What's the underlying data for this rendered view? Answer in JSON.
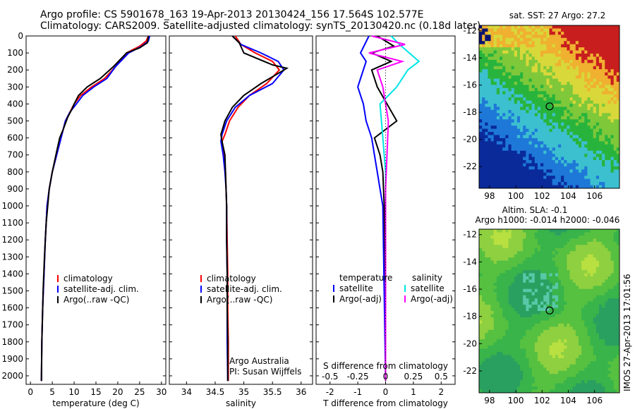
{
  "header": {
    "line1": "Argo profile: CS 5901678_163 19-Apr-2013 20130424_156 17.564S 102.577E",
    "line2": "Climatology: CARS2009. Satellite-adjusted climatology: synTS_20130420.nc (0.18d later)"
  },
  "side_stamp": "IMOS 27-Apr-2013 17:01:56",
  "colors": {
    "climatology": "#ff0000",
    "satellite": "#0000ff",
    "argo": "#000000",
    "sal_satellite": "#00e5e5",
    "sal_argo": "#ff00ff"
  },
  "chart_data": [
    {
      "id": "temperature",
      "type": "line",
      "xlabel": "temperature (deg C)",
      "ylim": [
        2050,
        0
      ],
      "xlim": [
        -1,
        31
      ],
      "xticks": [
        "0",
        "5",
        "10",
        "15",
        "20",
        "25",
        "30"
      ],
      "yticks": [
        "0",
        "100",
        "200",
        "300",
        "400",
        "500",
        "600",
        "700",
        "800",
        "900",
        "1000",
        "1100",
        "1200",
        "1300",
        "1400",
        "1500",
        "1600",
        "1700",
        "1800",
        "1900",
        "2000"
      ],
      "legend": [
        "climatology",
        "satellite-adj. clim.",
        "Argo(..raw -QC)"
      ],
      "series": [
        {
          "name": "climatology",
          "color": "red",
          "x": [
            27,
            26.5,
            25,
            22,
            19.5,
            17,
            14,
            11.5,
            10,
            9,
            8,
            7,
            6,
            5,
            4.3,
            3.8,
            3.4,
            3.1,
            2.8,
            2.6,
            2.5
          ],
          "y": [
            0,
            30,
            60,
            100,
            180,
            250,
            300,
            350,
            400,
            450,
            500,
            600,
            700,
            800,
            900,
            1000,
            1200,
            1400,
            1600,
            1800,
            2030
          ]
        },
        {
          "name": "satellite-adj. clim.",
          "color": "blue",
          "x": [
            27.3,
            27,
            25.5,
            22.5,
            19.5,
            17.5,
            14.5,
            12,
            10.5,
            9,
            8,
            7,
            6,
            5,
            4.3,
            3.8,
            3.4,
            3.1,
            2.8,
            2.6,
            2.5
          ],
          "y": [
            0,
            30,
            60,
            100,
            180,
            250,
            300,
            350,
            400,
            450,
            500,
            600,
            700,
            800,
            900,
            1000,
            1200,
            1400,
            1600,
            1800,
            2030
          ]
        },
        {
          "name": "Argo(..raw -QC)",
          "color": "black",
          "x": [
            27,
            26.8,
            25,
            22,
            19,
            16,
            13,
            11,
            10,
            9.5,
            8.5,
            7.5,
            6.7,
            6,
            5,
            4.3,
            3.6,
            3.2,
            2.9,
            2.6,
            2.5
          ],
          "y": [
            0,
            40,
            70,
            100,
            180,
            250,
            300,
            350,
            400,
            430,
            480,
            550,
            600,
            680,
            800,
            900,
            1100,
            1300,
            1500,
            1800,
            2030
          ]
        }
      ]
    },
    {
      "id": "salinity",
      "type": "line",
      "xlabel": "salinity",
      "ylim": [
        2050,
        0
      ],
      "xlim": [
        33.7,
        36.2
      ],
      "xticks": [
        "34",
        "34.5",
        "35",
        "35.5",
        "36"
      ],
      "legend": [
        "climatology",
        "satellite-adj. clim.",
        "Argo(..raw -QC)"
      ],
      "annotations": [
        "Argo Australia",
        "PI: Susan Wijffels"
      ],
      "series": [
        {
          "name": "climatology",
          "color": "red",
          "x": [
            34.85,
            34.95,
            35.2,
            35.5,
            35.62,
            35.4,
            35.1,
            34.9,
            34.75,
            34.67,
            34.62,
            34.65,
            34.68,
            34.69,
            34.7,
            34.71,
            34.72,
            34.72,
            34.73,
            34.73
          ],
          "y": [
            0,
            50,
            100,
            150,
            200,
            280,
            350,
            420,
            500,
            580,
            620,
            700,
            800,
            900,
            1000,
            1200,
            1400,
            1600,
            1800,
            2030
          ]
        },
        {
          "name": "satellite-adj. clim.",
          "color": "blue",
          "x": [
            34.8,
            34.95,
            35.3,
            35.6,
            35.7,
            35.5,
            35.1,
            34.85,
            34.7,
            34.62,
            34.6,
            34.64,
            34.67,
            34.69,
            34.7,
            34.7,
            34.71,
            34.71,
            34.71,
            34.72
          ],
          "y": [
            0,
            50,
            100,
            150,
            200,
            280,
            350,
            420,
            500,
            580,
            620,
            700,
            800,
            900,
            1000,
            1200,
            1400,
            1600,
            1800,
            2030
          ]
        },
        {
          "name": "Argo(..raw -QC)",
          "color": "black",
          "x": [
            34.8,
            34.92,
            35.0,
            35.5,
            35.75,
            35.3,
            35.0,
            34.8,
            34.67,
            34.6,
            34.62,
            34.67,
            34.68,
            34.69,
            34.7,
            34.7,
            34.71,
            34.71,
            34.72,
            34.72
          ],
          "y": [
            0,
            40,
            100,
            170,
            190,
            280,
            350,
            420,
            500,
            580,
            620,
            700,
            800,
            900,
            1000,
            1200,
            1400,
            1600,
            1800,
            2030
          ]
        }
      ]
    },
    {
      "id": "difference",
      "type": "line",
      "xlabel": "T difference from climatology",
      "xlabel2": "S difference from climatology",
      "ylim": [
        2050,
        0
      ],
      "xlim": [
        -2.5,
        2.5
      ],
      "xticks": [
        "-2",
        "-1",
        "0",
        "1",
        "2"
      ],
      "xticks_top": [
        "-0.5",
        "-0.25",
        "0",
        "0.25",
        "0.5"
      ],
      "legend_temperature": [
        "temperature",
        "satellite",
        "Argo(-adj)"
      ],
      "legend_salinity": [
        "salinity",
        "satellite",
        "Argo(-adj)"
      ],
      "series": [
        {
          "name": "temperature satellite",
          "color": "blue",
          "x": [
            -0.6,
            -0.9,
            -0.7,
            -1.0,
            -0.8,
            -0.7,
            -0.5,
            -0.4,
            -0.3,
            -0.2,
            -0.1,
            -0.05,
            0
          ],
          "y": [
            0,
            100,
            150,
            300,
            400,
            500,
            600,
            700,
            800,
            900,
            1000,
            1500,
            2030
          ]
        },
        {
          "name": "temperature Argo(-adj)",
          "color": "black",
          "x": [
            -0.3,
            0.3,
            -0.5,
            0.2,
            -0.5,
            -0.3,
            0.4,
            -0.4,
            -0.2,
            -0.1,
            -0.05,
            0,
            0
          ],
          "y": [
            0,
            60,
            100,
            150,
            200,
            300,
            500,
            600,
            700,
            800,
            1000,
            1500,
            2030
          ]
        },
        {
          "name": "salinity satellite",
          "color": "cyan",
          "x": [
            0.2,
            0.5,
            1.2,
            0.8,
            0.4,
            -0.2,
            -0.1,
            0,
            0,
            0,
            0,
            0
          ],
          "y": [
            0,
            50,
            150,
            200,
            300,
            400,
            600,
            800,
            1000,
            1400,
            1800,
            2030
          ]
        },
        {
          "name": "salinity Argo(-adj)",
          "color": "magenta",
          "x": [
            -0.5,
            0.7,
            -0.6,
            0.6,
            -0.3,
            -0.1,
            0.1,
            0.05,
            0,
            0,
            0,
            0
          ],
          "y": [
            0,
            50,
            100,
            150,
            200,
            300,
            500,
            700,
            900,
            1200,
            1600,
            2030
          ]
        }
      ]
    },
    {
      "id": "sst-map",
      "type": "heatmap",
      "title": "sat. SST: 27 Argo: 27.2",
      "xticks": [
        "98",
        "100",
        "102",
        "104",
        "106"
      ],
      "yticks": [
        "-12",
        "-14",
        "-16",
        "-18",
        "-20",
        "-22"
      ],
      "xlim": [
        97.2,
        107.9
      ],
      "ylim": [
        -23.6,
        -11.6
      ],
      "marker": {
        "lon": 102.577,
        "lat": -17.564
      }
    },
    {
      "id": "sla-map",
      "type": "heatmap",
      "title": "Altim. SLA: -0.1",
      "subtitle": "Argo h1000: -0.014 h2000: -0.046",
      "xticks": [
        "98",
        "100",
        "102",
        "104",
        "106"
      ],
      "yticks": [
        "-12",
        "-14",
        "-16",
        "-18",
        "-20",
        "-22"
      ],
      "xlim": [
        97.2,
        107.9
      ],
      "ylim": [
        -23.6,
        -11.6
      ],
      "marker": {
        "lon": 102.577,
        "lat": -17.564
      }
    }
  ]
}
